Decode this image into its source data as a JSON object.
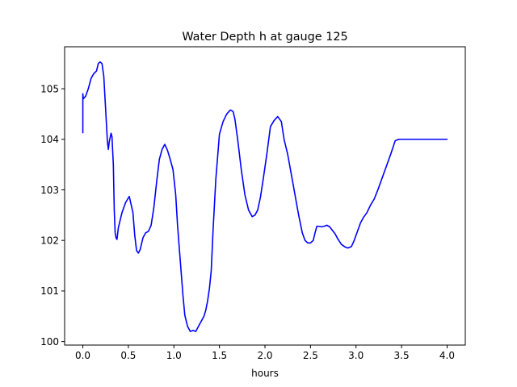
{
  "chart_data": {
    "type": "line",
    "title": "Water Depth h at gauge 125",
    "xlabel": "hours",
    "ylabel": "",
    "xlim": [
      -0.2,
      4.2
    ],
    "ylim": [
      99.93,
      105.83
    ],
    "xticks": [
      0.0,
      0.5,
      1.0,
      1.5,
      2.0,
      2.5,
      3.0,
      3.5,
      4.0
    ],
    "xtick_labels": [
      "0.0",
      "0.5",
      "1.0",
      "1.5",
      "2.0",
      "2.5",
      "3.0",
      "3.5",
      "4.0"
    ],
    "yticks": [
      100,
      101,
      102,
      103,
      104,
      105
    ],
    "ytick_labels": [
      "100",
      "101",
      "102",
      "103",
      "104",
      "105"
    ],
    "grid": false,
    "line_color": "#0000ff",
    "series": [
      {
        "x": [
          0.0,
          0.0,
          0.005,
          0.03,
          0.06,
          0.09,
          0.12,
          0.15,
          0.17,
          0.19,
          0.21,
          0.23,
          0.25,
          0.27,
          0.28,
          0.29,
          0.31,
          0.32,
          0.335,
          0.345,
          0.355,
          0.365,
          0.375,
          0.39,
          0.41,
          0.43,
          0.47,
          0.51,
          0.55,
          0.57,
          0.59,
          0.61,
          0.63,
          0.66,
          0.69,
          0.72,
          0.75,
          0.78,
          0.81,
          0.84,
          0.87,
          0.9,
          0.93,
          0.96,
          0.99,
          1.02,
          1.04,
          1.07,
          1.1,
          1.12,
          1.15,
          1.18,
          1.21,
          1.24,
          1.27,
          1.3,
          1.33,
          1.35,
          1.37,
          1.39,
          1.41,
          1.43,
          1.46,
          1.5,
          1.54,
          1.58,
          1.62,
          1.65,
          1.67,
          1.7,
          1.74,
          1.78,
          1.82,
          1.86,
          1.89,
          1.92,
          1.95,
          1.98,
          2.02,
          2.06,
          2.1,
          2.14,
          2.18,
          2.21,
          2.25,
          2.29,
          2.33,
          2.37,
          2.41,
          2.44,
          2.47,
          2.5,
          2.53,
          2.55,
          2.57,
          2.59,
          2.62,
          2.65,
          2.68,
          2.71,
          2.74,
          2.77,
          2.8,
          2.84,
          2.88,
          2.91,
          2.95,
          2.98,
          3.02,
          3.05,
          3.08,
          3.12,
          3.16,
          3.2,
          3.24,
          3.28,
          3.33,
          3.38,
          3.43,
          3.47,
          3.5,
          3.53,
          3.56,
          3.6,
          3.65,
          3.7,
          3.75,
          3.8,
          3.85,
          3.9,
          3.95,
          4.0
        ],
        "values": [
          104.13,
          104.9,
          104.8,
          104.85,
          105.0,
          105.2,
          105.3,
          105.35,
          105.5,
          105.53,
          105.5,
          105.25,
          104.6,
          103.95,
          103.8,
          103.95,
          104.12,
          104.05,
          103.5,
          102.6,
          102.15,
          102.05,
          102.02,
          102.25,
          102.4,
          102.55,
          102.75,
          102.87,
          102.55,
          102.1,
          101.8,
          101.75,
          101.82,
          102.05,
          102.15,
          102.18,
          102.3,
          102.65,
          103.15,
          103.6,
          103.8,
          103.9,
          103.78,
          103.6,
          103.4,
          102.9,
          102.3,
          101.6,
          100.9,
          100.52,
          100.3,
          100.2,
          100.22,
          100.2,
          100.3,
          100.4,
          100.5,
          100.62,
          100.8,
          101.05,
          101.4,
          102.2,
          103.2,
          104.1,
          104.35,
          104.5,
          104.58,
          104.55,
          104.4,
          104.0,
          103.4,
          102.9,
          102.6,
          102.47,
          102.5,
          102.6,
          102.85,
          103.2,
          103.7,
          104.25,
          104.37,
          104.45,
          104.35,
          104.0,
          103.7,
          103.3,
          102.9,
          102.5,
          102.15,
          102.0,
          101.95,
          101.95,
          102.0,
          102.15,
          102.28,
          102.28,
          102.27,
          102.28,
          102.3,
          102.27,
          102.2,
          102.13,
          102.03,
          101.92,
          101.87,
          101.85,
          101.88,
          102.0,
          102.2,
          102.35,
          102.45,
          102.55,
          102.7,
          102.82,
          103.0,
          103.2,
          103.45,
          103.7,
          103.97,
          104.0,
          104.0,
          104.0,
          104.0,
          104.0,
          104.0,
          104.0,
          104.0,
          104.0,
          104.0,
          104.0,
          104.0,
          104.0
        ]
      }
    ]
  }
}
